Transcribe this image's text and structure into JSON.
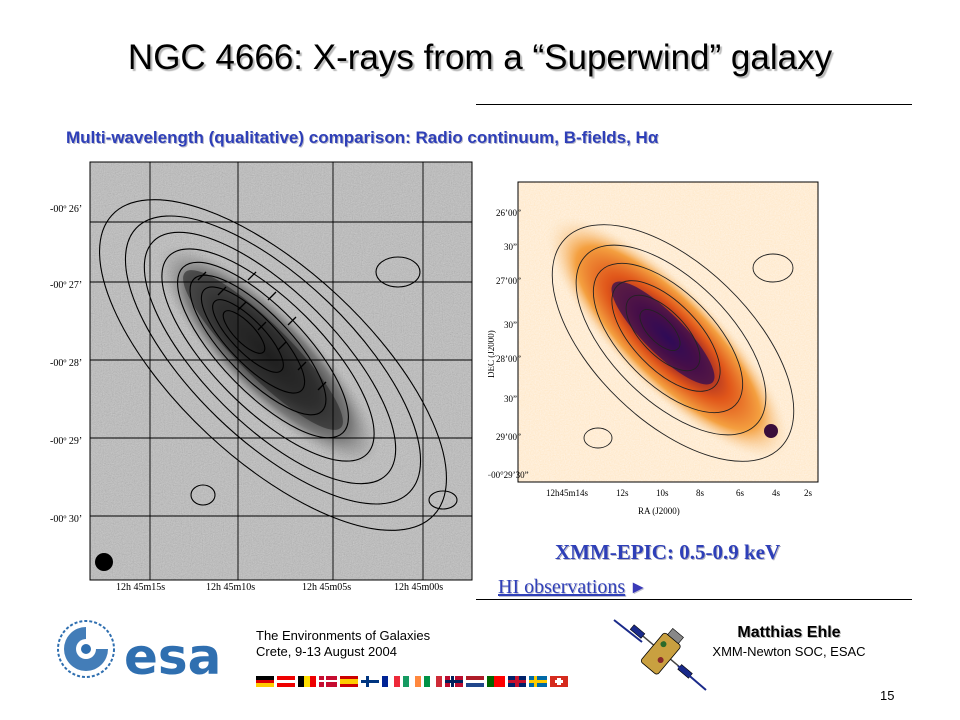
{
  "title": "NGC 4666: X-rays from a “Superwind” galaxy",
  "subtitle": "Multi-wavelength (qualitative) comparison: Radio continuum, B-fields, H",
  "subtitle_symbol": "α",
  "left_panel": {
    "dec_labels": [
      "-00º 26’",
      "-00º 27’",
      "-00º 28’",
      "-00º 29’",
      "-00º 30’"
    ],
    "ra_labels": [
      "12h 45m15s",
      "12h 45m10s",
      "12h 45m05s",
      "12h 45m00s"
    ]
  },
  "right_panel": {
    "dec_labels": [
      "26’00”",
      "30”",
      "27’00”",
      "30”",
      "28’00”",
      "30”",
      "29’00”",
      "−00°29’30”"
    ],
    "ra_labels": [
      "12h45m14s",
      "12s",
      "10s",
      "8s",
      "6s",
      "4s",
      "2s"
    ],
    "y_axis_title": "DEC (J2000)",
    "x_axis_title": "RA (J2000)"
  },
  "epic_label": "XMM-EPIC: 0.5-0.9 keV",
  "hi_link": "HI observations",
  "hi_arrow": "►",
  "footer": {
    "logo_text": "esa",
    "conference_line1": "The Environments of Galaxies",
    "conference_line2": "Crete, 9-13 August 2004",
    "author_name": "Matthias Ehle",
    "author_affiliation": "XMM-Newton SOC, ESAC",
    "page_number": "15"
  },
  "colors": {
    "accent_blue": "#2e3fb8",
    "esa_blue": "#2f6fb0"
  }
}
